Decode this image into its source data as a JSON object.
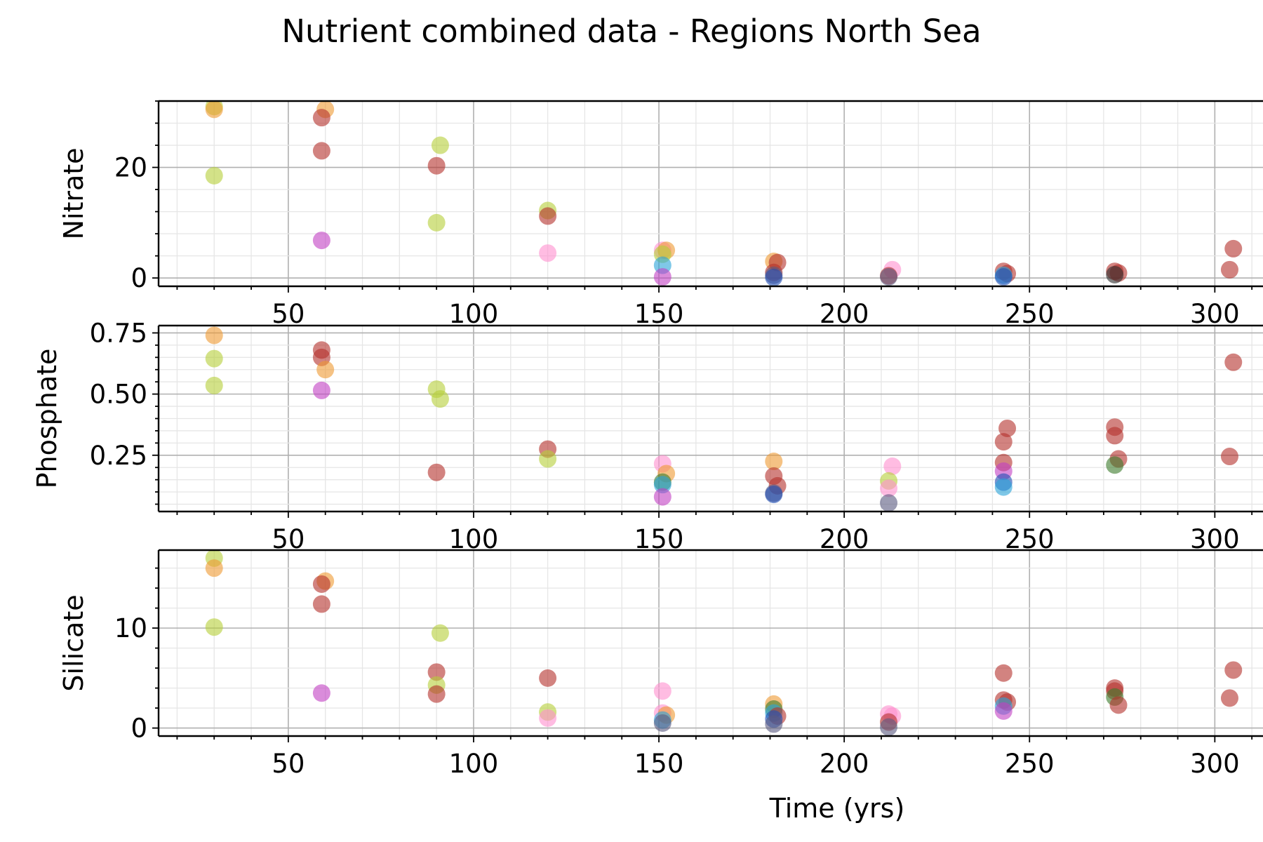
{
  "title": "Nutrient combined data - Regions North Sea",
  "xlabel": "Time (yrs)",
  "chart_data": {
    "type": "scatter",
    "title": "Nutrient combined data - Regions North Sea",
    "xlabel": "Time (yrs)",
    "xlim": [
      15,
      313
    ],
    "xticks": [
      50,
      100,
      150,
      200,
      250,
      300
    ],
    "grid": true,
    "marker_alpha": 0.6,
    "colors": {
      "olive": "#b5cf38",
      "orange": "#ee9a32",
      "brown": "#b4302c",
      "purple": "#c23fc3",
      "pink": "#ff8fcf",
      "cyan": "#2aa3d8",
      "blue": "#1f4fb4",
      "green": "#3a7a2a",
      "dark": "#2b2b2b",
      "slate": "#5a5a80"
    },
    "panels": [
      {
        "ylabel": "Nitrate",
        "ylim": [
          -1.5,
          32
        ],
        "yticks": [
          0,
          20
        ],
        "points": [
          {
            "x": 30,
            "y": 31.0,
            "c": "olive"
          },
          {
            "x": 30,
            "y": 30.5,
            "c": "orange"
          },
          {
            "x": 30,
            "y": 18.5,
            "c": "olive"
          },
          {
            "x": 60,
            "y": 30.5,
            "c": "orange"
          },
          {
            "x": 59,
            "y": 29.0,
            "c": "brown"
          },
          {
            "x": 59,
            "y": 23.0,
            "c": "brown"
          },
          {
            "x": 59,
            "y": 6.8,
            "c": "purple"
          },
          {
            "x": 91,
            "y": 24.0,
            "c": "olive"
          },
          {
            "x": 90,
            "y": 20.3,
            "c": "brown"
          },
          {
            "x": 90,
            "y": 10.0,
            "c": "olive"
          },
          {
            "x": 120,
            "y": 12.2,
            "c": "olive"
          },
          {
            "x": 120,
            "y": 11.2,
            "c": "brown"
          },
          {
            "x": 120,
            "y": 4.5,
            "c": "pink"
          },
          {
            "x": 151,
            "y": 5.0,
            "c": "pink"
          },
          {
            "x": 152,
            "y": 5.0,
            "c": "orange"
          },
          {
            "x": 151,
            "y": 4.3,
            "c": "olive"
          },
          {
            "x": 151,
            "y": 2.3,
            "c": "cyan"
          },
          {
            "x": 151,
            "y": 0.2,
            "c": "purple"
          },
          {
            "x": 181,
            "y": 3.0,
            "c": "orange"
          },
          {
            "x": 182,
            "y": 2.8,
            "c": "brown"
          },
          {
            "x": 181,
            "y": 1.0,
            "c": "brown"
          },
          {
            "x": 181,
            "y": 0.5,
            "c": "slate"
          },
          {
            "x": 181,
            "y": 0.1,
            "c": "blue"
          },
          {
            "x": 213,
            "y": 1.5,
            "c": "pink"
          },
          {
            "x": 212,
            "y": 0.4,
            "c": "brown"
          },
          {
            "x": 212,
            "y": 0.2,
            "c": "slate"
          },
          {
            "x": 243,
            "y": 1.2,
            "c": "brown"
          },
          {
            "x": 244,
            "y": 0.8,
            "c": "brown"
          },
          {
            "x": 243,
            "y": 0.5,
            "c": "cyan"
          },
          {
            "x": 243,
            "y": 0.2,
            "c": "blue"
          },
          {
            "x": 273,
            "y": 1.2,
            "c": "brown"
          },
          {
            "x": 274,
            "y": 0.9,
            "c": "brown"
          },
          {
            "x": 273,
            "y": 0.6,
            "c": "dark"
          },
          {
            "x": 305,
            "y": 5.3,
            "c": "brown"
          },
          {
            "x": 304,
            "y": 1.5,
            "c": "brown"
          }
        ]
      },
      {
        "ylabel": "Phosphate",
        "ylim": [
          0.02,
          0.78
        ],
        "yticks": [
          0.25,
          0.5,
          0.75
        ],
        "ytick_labels": [
          "0.25",
          "0.50",
          "0.75"
        ],
        "points": [
          {
            "x": 30,
            "y": 0.74,
            "c": "orange"
          },
          {
            "x": 30,
            "y": 0.645,
            "c": "olive"
          },
          {
            "x": 30,
            "y": 0.535,
            "c": "olive"
          },
          {
            "x": 59,
            "y": 0.68,
            "c": "brown"
          },
          {
            "x": 59,
            "y": 0.65,
            "c": "brown"
          },
          {
            "x": 60,
            "y": 0.6,
            "c": "orange"
          },
          {
            "x": 59,
            "y": 0.515,
            "c": "purple"
          },
          {
            "x": 90,
            "y": 0.52,
            "c": "olive"
          },
          {
            "x": 91,
            "y": 0.48,
            "c": "olive"
          },
          {
            "x": 90,
            "y": 0.18,
            "c": "brown"
          },
          {
            "x": 120,
            "y": 0.275,
            "c": "brown"
          },
          {
            "x": 120,
            "y": 0.235,
            "c": "olive"
          },
          {
            "x": 151,
            "y": 0.215,
            "c": "pink"
          },
          {
            "x": 152,
            "y": 0.175,
            "c": "orange"
          },
          {
            "x": 151,
            "y": 0.14,
            "c": "green"
          },
          {
            "x": 151,
            "y": 0.13,
            "c": "cyan"
          },
          {
            "x": 151,
            "y": 0.08,
            "c": "purple"
          },
          {
            "x": 181,
            "y": 0.225,
            "c": "orange"
          },
          {
            "x": 181,
            "y": 0.165,
            "c": "brown"
          },
          {
            "x": 182,
            "y": 0.125,
            "c": "brown"
          },
          {
            "x": 181,
            "y": 0.095,
            "c": "slate"
          },
          {
            "x": 181,
            "y": 0.09,
            "c": "blue"
          },
          {
            "x": 213,
            "y": 0.205,
            "c": "pink"
          },
          {
            "x": 212,
            "y": 0.145,
            "c": "olive"
          },
          {
            "x": 212,
            "y": 0.115,
            "c": "pink"
          },
          {
            "x": 212,
            "y": 0.055,
            "c": "slate"
          },
          {
            "x": 244,
            "y": 0.36,
            "c": "brown"
          },
          {
            "x": 243,
            "y": 0.305,
            "c": "brown"
          },
          {
            "x": 243,
            "y": 0.22,
            "c": "brown"
          },
          {
            "x": 243,
            "y": 0.185,
            "c": "purple"
          },
          {
            "x": 243,
            "y": 0.14,
            "c": "blue"
          },
          {
            "x": 243,
            "y": 0.12,
            "c": "cyan"
          },
          {
            "x": 273,
            "y": 0.365,
            "c": "brown"
          },
          {
            "x": 273,
            "y": 0.33,
            "c": "brown"
          },
          {
            "x": 274,
            "y": 0.235,
            "c": "brown"
          },
          {
            "x": 273,
            "y": 0.21,
            "c": "green"
          },
          {
            "x": 305,
            "y": 0.63,
            "c": "brown"
          },
          {
            "x": 304,
            "y": 0.245,
            "c": "brown"
          }
        ]
      },
      {
        "ylabel": "Silicate",
        "ylim": [
          -0.8,
          17.8
        ],
        "yticks": [
          0,
          10
        ],
        "points": [
          {
            "x": 30,
            "y": 17.0,
            "c": "olive"
          },
          {
            "x": 30,
            "y": 16.0,
            "c": "orange"
          },
          {
            "x": 30,
            "y": 10.1,
            "c": "olive"
          },
          {
            "x": 60,
            "y": 14.7,
            "c": "orange"
          },
          {
            "x": 59,
            "y": 14.4,
            "c": "brown"
          },
          {
            "x": 59,
            "y": 12.4,
            "c": "brown"
          },
          {
            "x": 59,
            "y": 3.5,
            "c": "purple"
          },
          {
            "x": 91,
            "y": 9.5,
            "c": "olive"
          },
          {
            "x": 90,
            "y": 5.6,
            "c": "brown"
          },
          {
            "x": 90,
            "y": 4.3,
            "c": "olive"
          },
          {
            "x": 90,
            "y": 3.4,
            "c": "brown"
          },
          {
            "x": 120,
            "y": 5.0,
            "c": "brown"
          },
          {
            "x": 120,
            "y": 1.6,
            "c": "olive"
          },
          {
            "x": 120,
            "y": 1.0,
            "c": "pink"
          },
          {
            "x": 151,
            "y": 3.7,
            "c": "pink"
          },
          {
            "x": 151,
            "y": 1.5,
            "c": "pink"
          },
          {
            "x": 152,
            "y": 1.3,
            "c": "orange"
          },
          {
            "x": 151,
            "y": 0.8,
            "c": "cyan"
          },
          {
            "x": 151,
            "y": 0.5,
            "c": "slate"
          },
          {
            "x": 181,
            "y": 2.4,
            "c": "orange"
          },
          {
            "x": 181,
            "y": 1.9,
            "c": "green"
          },
          {
            "x": 181,
            "y": 1.5,
            "c": "cyan"
          },
          {
            "x": 182,
            "y": 1.2,
            "c": "brown"
          },
          {
            "x": 181,
            "y": 0.9,
            "c": "blue"
          },
          {
            "x": 181,
            "y": 0.4,
            "c": "slate"
          },
          {
            "x": 212,
            "y": 1.4,
            "c": "pink"
          },
          {
            "x": 213,
            "y": 1.2,
            "c": "pink"
          },
          {
            "x": 212,
            "y": 0.6,
            "c": "brown"
          },
          {
            "x": 212,
            "y": 0.1,
            "c": "slate"
          },
          {
            "x": 243,
            "y": 5.5,
            "c": "brown"
          },
          {
            "x": 243,
            "y": 2.8,
            "c": "brown"
          },
          {
            "x": 244,
            "y": 2.6,
            "c": "brown"
          },
          {
            "x": 243,
            "y": 2.2,
            "c": "cyan"
          },
          {
            "x": 243,
            "y": 1.7,
            "c": "purple"
          },
          {
            "x": 273,
            "y": 4.0,
            "c": "brown"
          },
          {
            "x": 273,
            "y": 3.7,
            "c": "brown"
          },
          {
            "x": 273,
            "y": 3.1,
            "c": "green"
          },
          {
            "x": 274,
            "y": 2.3,
            "c": "brown"
          },
          {
            "x": 305,
            "y": 5.8,
            "c": "brown"
          },
          {
            "x": 304,
            "y": 3.0,
            "c": "brown"
          }
        ]
      }
    ]
  }
}
